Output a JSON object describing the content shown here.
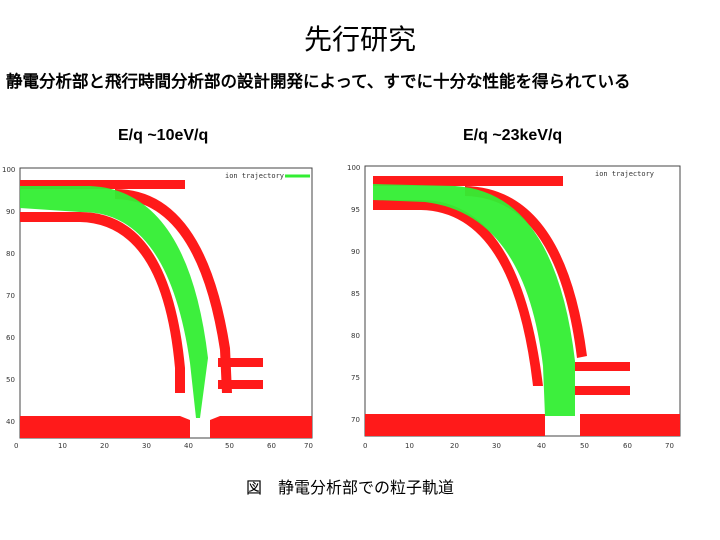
{
  "title": "先行研究",
  "subtitle": "静電分析部と飛行時間分析部の設計開発によって、すでに十分な性能を得られている",
  "caption": "図　静電分析部での粒子軌道",
  "panels": [
    {
      "label": "E/q ~10eV/q",
      "legend_text": "ion trajectory",
      "x_ticks": [
        "0",
        "10",
        "20",
        "30",
        "40",
        "50",
        "60",
        "70"
      ],
      "y_ticks": [
        "100",
        "90",
        "80",
        "70",
        "60",
        "50",
        "40"
      ]
    },
    {
      "label": "E/q ~23keV/q",
      "legend_text": "ion trajectory",
      "x_ticks": [
        "0",
        "10",
        "20",
        "30",
        "40",
        "50",
        "60",
        "70"
      ],
      "y_ticks": [
        "100",
        "95",
        "90",
        "85",
        "80",
        "75",
        "70"
      ]
    }
  ],
  "colors": {
    "electrode": "#ff1a1a",
    "trajectory": "#33ee33",
    "frame": "#444444"
  }
}
